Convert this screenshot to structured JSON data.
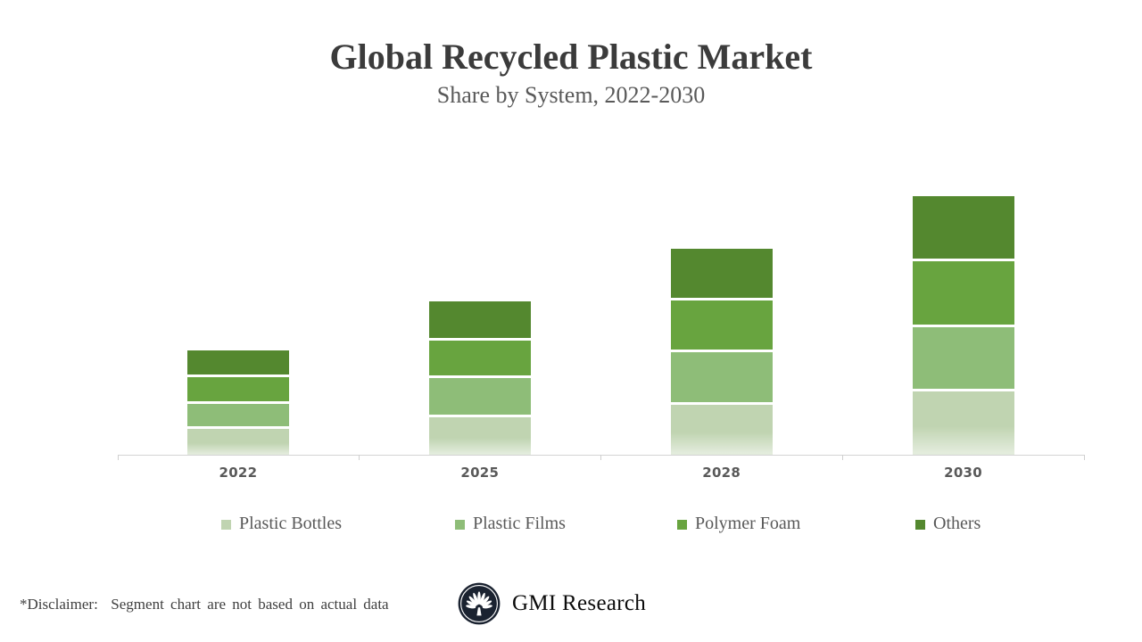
{
  "header": {
    "title": "Global Recycled Plastic Market",
    "subtitle": "Share by System, 2022-2030"
  },
  "chart_data": {
    "type": "bar",
    "stacked": true,
    "title": "Global Recycled Plastic Market",
    "subtitle": "Share by System, 2022-2030",
    "categories": [
      "2022",
      "2025",
      "2028",
      "2030"
    ],
    "series": [
      {
        "name": "Plastic Bottles",
        "color": "#c0d4b1",
        "values": [
          29,
          42,
          56,
          71
        ]
      },
      {
        "name": "Plastic Films",
        "color": "#8ebd78",
        "values": [
          25,
          41,
          56,
          69
        ]
      },
      {
        "name": "Polymer Foam",
        "color": "#68a43f",
        "values": [
          27,
          39,
          55,
          71
        ]
      },
      {
        "name": "Others",
        "color": "#54882f",
        "values": [
          27,
          41,
          55,
          70
        ]
      }
    ],
    "xlabel": "",
    "ylabel": "",
    "value_axis": {
      "visible": false,
      "note": "no numeric axis shown; values are relative units read from bar heights"
    },
    "gridlines": false,
    "legend_position": "bottom",
    "segment_gap_color": "#ffffff"
  },
  "footer": {
    "disclaimer": "*Disclaimer:  Segment chart are not based on actual data",
    "brand": "GMI Research"
  }
}
